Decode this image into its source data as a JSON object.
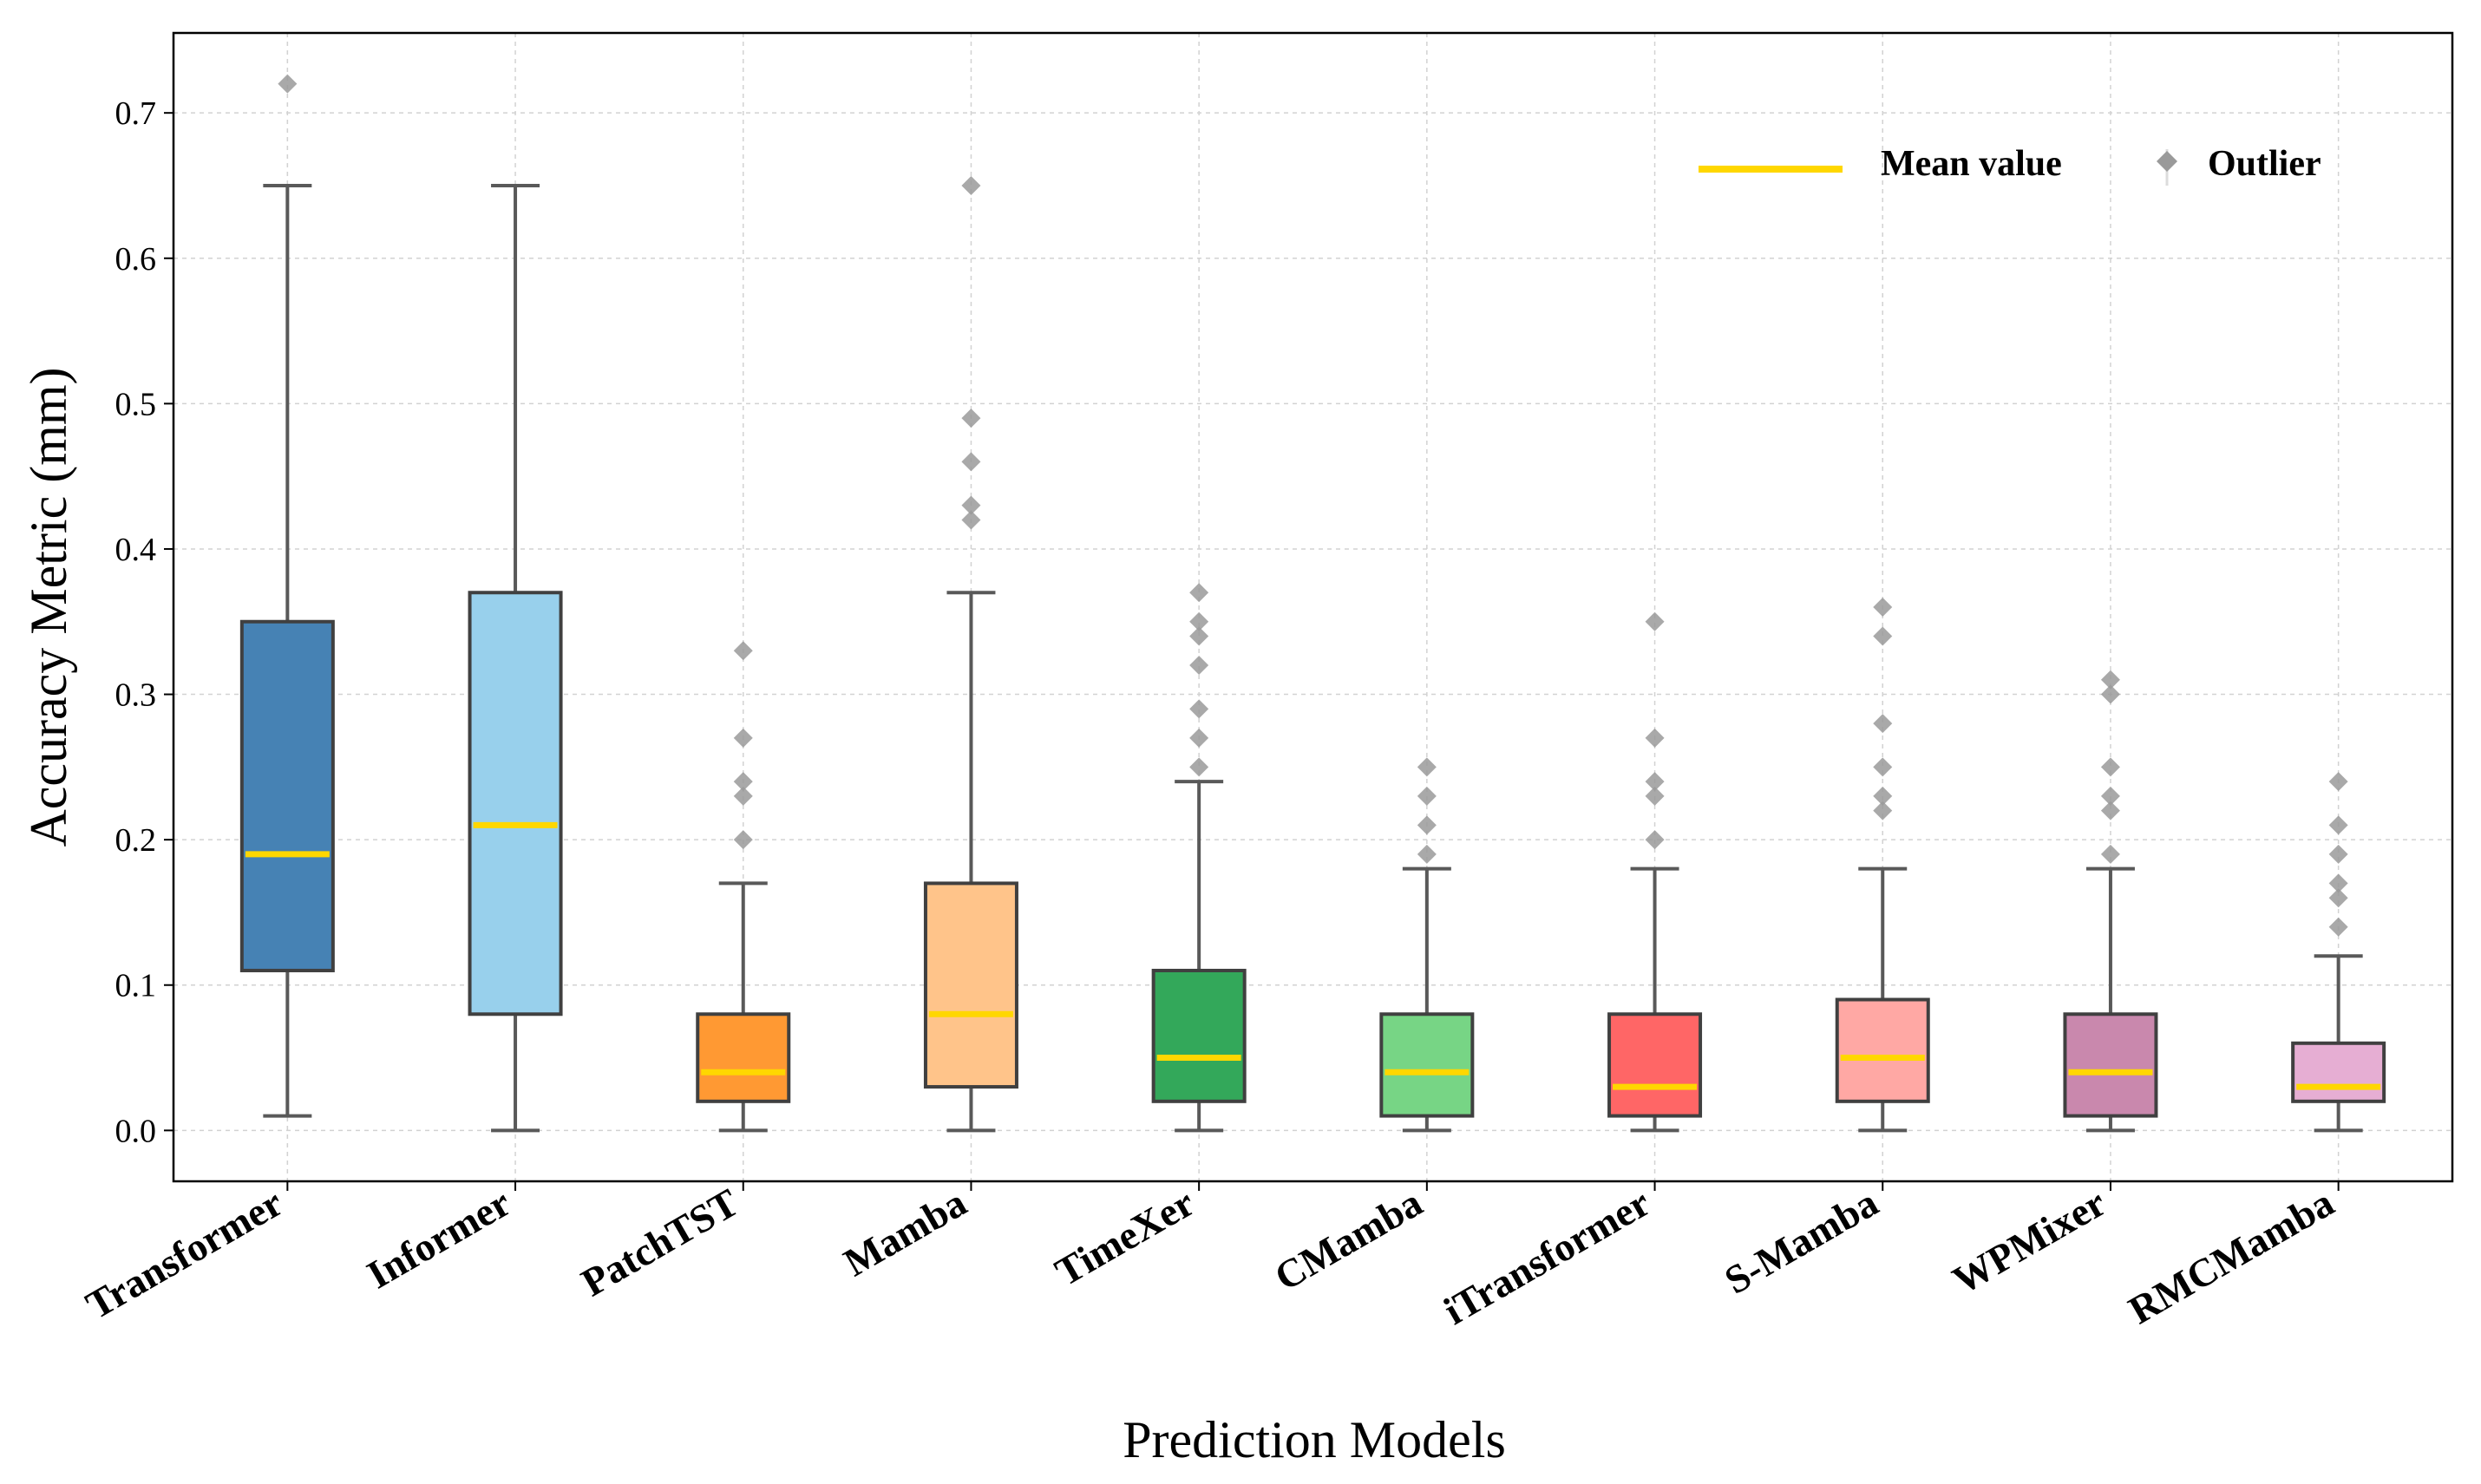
{
  "chart_data": {
    "type": "box",
    "xlabel": "Prediction Models",
    "ylabel": "Accuracy Metric (mm)",
    "ylim": [
      -0.035,
      0.755
    ],
    "yticks": [
      "0.0",
      "0.1",
      "0.2",
      "0.3",
      "0.4",
      "0.5",
      "0.6",
      "0.7"
    ],
    "grid": true,
    "legend": {
      "position": "top-right",
      "mean_label": "Mean value",
      "outlier_label": "Outlier"
    },
    "colors": {
      "mean_line": "#ffd700",
      "outlier": "#9a9a9a",
      "whisker": "#595959",
      "box_edge": "#404040"
    },
    "categories": [
      "Transformer",
      "Informer",
      "PatchTST",
      "Mamba",
      "TimeXer",
      "CMamba",
      "iTransformer",
      "S-Mamba",
      "WPMixer",
      "RMCMamba"
    ],
    "boxes": [
      {
        "name": "Transformer",
        "color": "#4682b4",
        "whislo": 0.01,
        "q1": 0.11,
        "q3": 0.35,
        "whishi": 0.65,
        "mean": 0.19,
        "fliers": [
          0.72
        ]
      },
      {
        "name": "Informer",
        "color": "#98d0ec",
        "whislo": 0.0,
        "q1": 0.08,
        "q3": 0.37,
        "whishi": 0.65,
        "mean": 0.21,
        "fliers": []
      },
      {
        "name": "PatchTST",
        "color": "#ff9933",
        "whislo": 0.0,
        "q1": 0.02,
        "q3": 0.08,
        "whishi": 0.17,
        "mean": 0.04,
        "fliers": [
          0.2,
          0.23,
          0.24,
          0.27,
          0.33
        ]
      },
      {
        "name": "Mamba",
        "color": "#ffc48a",
        "whislo": 0.0,
        "q1": 0.03,
        "q3": 0.17,
        "whishi": 0.37,
        "mean": 0.08,
        "fliers": [
          0.42,
          0.43,
          0.46,
          0.49,
          0.65
        ]
      },
      {
        "name": "TimeXer",
        "color": "#33a85a",
        "whislo": 0.0,
        "q1": 0.02,
        "q3": 0.11,
        "whishi": 0.24,
        "mean": 0.05,
        "fliers": [
          0.25,
          0.27,
          0.29,
          0.32,
          0.34,
          0.35,
          0.37
        ]
      },
      {
        "name": "CMamba",
        "color": "#77d585",
        "whislo": 0.0,
        "q1": 0.01,
        "q3": 0.08,
        "whishi": 0.18,
        "mean": 0.04,
        "fliers": [
          0.19,
          0.21,
          0.23,
          0.25
        ]
      },
      {
        "name": "iTransformer",
        "color": "#ff6666",
        "whislo": 0.0,
        "q1": 0.01,
        "q3": 0.08,
        "whishi": 0.18,
        "mean": 0.03,
        "fliers": [
          0.2,
          0.23,
          0.24,
          0.27,
          0.35
        ]
      },
      {
        "name": "S-Mamba",
        "color": "#ffa8a4",
        "whislo": 0.0,
        "q1": 0.02,
        "q3": 0.09,
        "whishi": 0.18,
        "mean": 0.05,
        "fliers": [
          0.22,
          0.23,
          0.25,
          0.28,
          0.34,
          0.36
        ]
      },
      {
        "name": "WPMixer",
        "color": "#c988ad",
        "whislo": 0.0,
        "q1": 0.01,
        "q3": 0.08,
        "whishi": 0.18,
        "mean": 0.04,
        "fliers": [
          0.19,
          0.22,
          0.23,
          0.25,
          0.3,
          0.31
        ]
      },
      {
        "name": "RMCMamba",
        "color": "#e6aed3",
        "whislo": 0.0,
        "q1": 0.02,
        "q3": 0.06,
        "whishi": 0.12,
        "mean": 0.03,
        "fliers": [
          0.14,
          0.16,
          0.17,
          0.19,
          0.21,
          0.24
        ]
      }
    ]
  }
}
